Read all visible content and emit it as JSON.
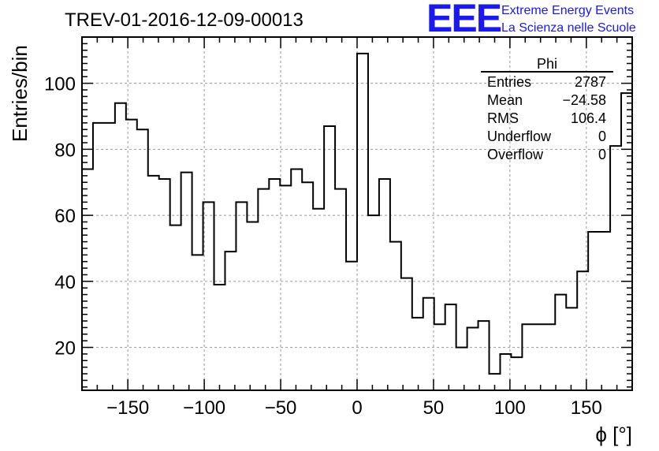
{
  "header": {
    "run_title": "TREV-01-2016-12-09-00013",
    "logo_text": "EEE",
    "logo_line1": "Extreme Energy Events",
    "logo_line2": "La Scienza nelle Scuole",
    "logo_color": "#1a1aee"
  },
  "stats": {
    "title": "Phi",
    "rows": [
      {
        "label": "Entries",
        "value": "2787"
      },
      {
        "label": "Mean",
        "value": "−24.58"
      },
      {
        "label": "RMS",
        "value": "106.4"
      },
      {
        "label": "Underflow",
        "value": "0"
      },
      {
        "label": "Overflow",
        "value": "0"
      }
    ]
  },
  "chart_data": {
    "type": "bar",
    "style": "step-histogram",
    "title": "TREV-01-2016-12-09-00013",
    "xlabel": "ϕ [°]",
    "ylabel": "Entries/bin",
    "xlim": [
      -180,
      180
    ],
    "ylim": [
      7,
      114
    ],
    "bin_width": 7.2,
    "grid": true,
    "x_ticks": [
      -150,
      -100,
      -50,
      0,
      50,
      100,
      150
    ],
    "x_tick_labels": [
      "−150",
      "−100",
      "−50",
      "0",
      "50",
      "100",
      "150"
    ],
    "y_ticks": [
      20,
      40,
      60,
      80,
      100
    ],
    "y_tick_labels": [
      "20",
      "40",
      "60",
      "80",
      "100"
    ],
    "bin_edges_start": -180,
    "values": [
      74,
      88,
      88,
      94,
      89,
      86,
      72,
      71,
      57,
      73,
      48,
      64,
      39,
      49,
      64,
      58,
      68,
      71,
      69,
      74,
      70,
      62,
      87,
      68,
      46,
      109,
      60,
      71,
      52,
      41,
      29,
      35,
      27,
      33,
      20,
      26,
      28,
      12,
      18,
      17,
      27,
      27,
      27,
      36,
      32,
      43,
      55,
      55,
      81,
      97
    ]
  }
}
